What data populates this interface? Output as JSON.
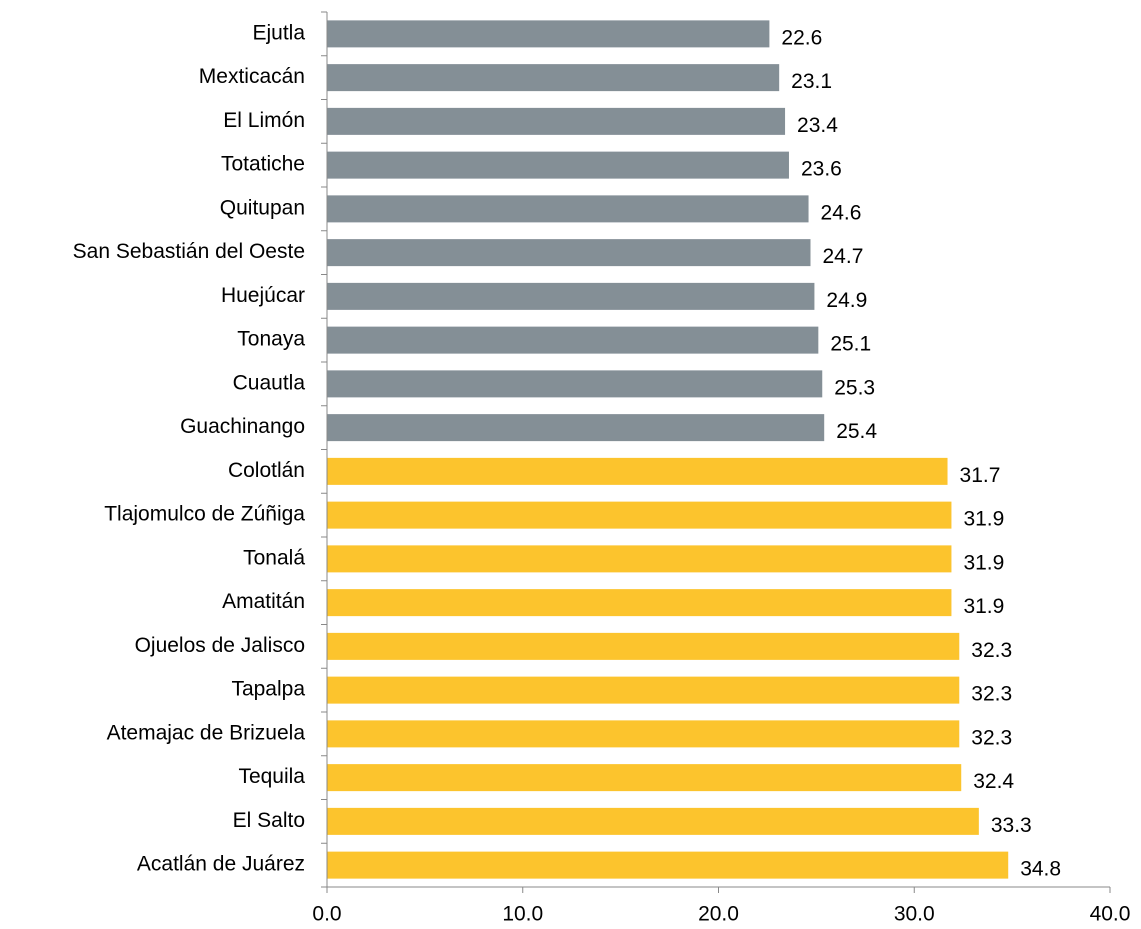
{
  "chart_data": {
    "type": "bar",
    "orientation": "horizontal",
    "categories": [
      "Ejutla",
      "Mexticacán",
      "El Limón",
      "Totatiche",
      "Quitupan",
      "San Sebastián del Oeste",
      "Huejúcar",
      "Tonaya",
      "Cuautla",
      "Guachinango",
      "Colotlán",
      "Tlajomulco de Zúñiga",
      "Tonalá",
      "Amatitán",
      "Ojuelos de Jalisco",
      "Tapalpa",
      "Atemajac de Brizuela",
      "Tequila",
      "El Salto",
      "Acatlán de Juárez"
    ],
    "values": [
      22.6,
      23.1,
      23.4,
      23.6,
      24.6,
      24.7,
      24.9,
      25.1,
      25.3,
      25.4,
      31.7,
      31.9,
      31.9,
      31.9,
      32.3,
      32.3,
      32.3,
      32.4,
      33.3,
      34.8
    ],
    "colors": [
      "#848f96",
      "#848f96",
      "#848f96",
      "#848f96",
      "#848f96",
      "#848f96",
      "#848f96",
      "#848f96",
      "#848f96",
      "#848f96",
      "#fcc42d",
      "#fcc42d",
      "#fcc42d",
      "#fcc42d",
      "#fcc42d",
      "#fcc42d",
      "#fcc42d",
      "#fcc42d",
      "#fcc42d",
      "#fcc42d"
    ],
    "xlim": [
      0,
      40
    ],
    "xticks": [
      {
        "value": 0,
        "label": "0.0"
      },
      {
        "value": 10,
        "label": "10.0"
      },
      {
        "value": 20,
        "label": "20.0"
      },
      {
        "value": 30,
        "label": "30.0"
      },
      {
        "value": 40,
        "label": "40.0"
      }
    ],
    "grid": false
  }
}
